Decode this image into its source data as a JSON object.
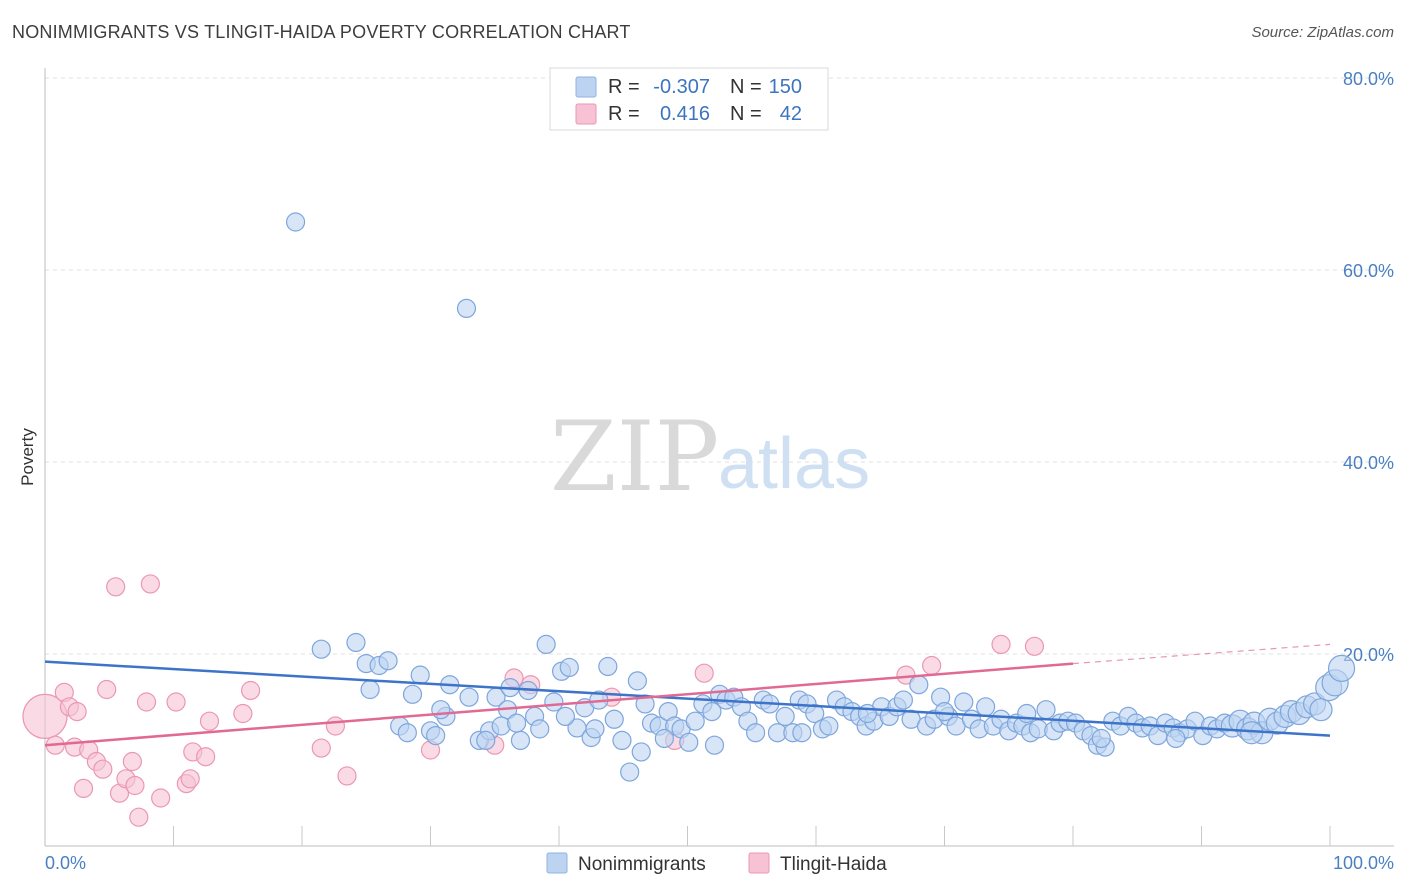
{
  "title": "NONIMMIGRANTS VS TLINGIT-HAIDA POVERTY CORRELATION CHART",
  "source": "Source: ZipAtlas.com",
  "watermark": {
    "zip": "ZIP",
    "atlas": "atlas"
  },
  "colors": {
    "blue": "#3d74c9",
    "blue_fill": "#bcd4f2",
    "pink": "#e06a93",
    "pink_fill": "#f7c3d4"
  },
  "chart_data": {
    "type": "scatter",
    "title": "NONIMMIGRANTS VS TLINGIT-HAIDA POVERTY CORRELATION CHART",
    "xlabel": "",
    "ylabel": "Poverty",
    "xlim": [
      0,
      100
    ],
    "ylim": [
      0,
      80
    ],
    "x_tick_labels": [
      "0.0%",
      "100.0%"
    ],
    "y_ticks": [
      20,
      40,
      60,
      80
    ],
    "y_tick_labels": [
      "20.0%",
      "40.0%",
      "60.0%",
      "80.0%"
    ],
    "legend_stats": [
      {
        "r_label": "R =",
        "r_value": "-0.307",
        "n_label": "N =",
        "n_value": "150"
      },
      {
        "r_label": "R =",
        "r_value": "0.416",
        "n_label": "N =",
        "n_value": "42"
      }
    ],
    "series": [
      {
        "name": "Nonimmigrants",
        "trend": {
          "x": [
            0,
            100
          ],
          "y": [
            19.2,
            11.5
          ]
        },
        "points": [
          [
            19.5,
            65
          ],
          [
            32.8,
            56
          ],
          [
            21.5,
            20.5
          ],
          [
            24.2,
            21.2
          ],
          [
            25.0,
            19.0
          ],
          [
            26.0,
            18.8
          ],
          [
            26.7,
            19.3
          ],
          [
            25.3,
            16.3
          ],
          [
            27.6,
            12.5
          ],
          [
            28.6,
            15.8
          ],
          [
            29.2,
            17.8
          ],
          [
            30.0,
            12.0
          ],
          [
            30.4,
            11.5
          ],
          [
            31.2,
            13.5
          ],
          [
            31.5,
            16.8
          ],
          [
            33.0,
            15.5
          ],
          [
            33.8,
            11.0
          ],
          [
            34.6,
            12.0
          ],
          [
            35.1,
            15.5
          ],
          [
            36.0,
            14.2
          ],
          [
            35.5,
            12.5
          ],
          [
            36.2,
            16.5
          ],
          [
            37.0,
            11.0
          ],
          [
            37.6,
            16.2
          ],
          [
            38.1,
            13.5
          ],
          [
            38.5,
            12.2
          ],
          [
            39.0,
            21.0
          ],
          [
            39.6,
            15.0
          ],
          [
            40.2,
            18.2
          ],
          [
            40.8,
            18.6
          ],
          [
            41.4,
            12.3
          ],
          [
            42.0,
            14.4
          ],
          [
            42.5,
            11.3
          ],
          [
            43.1,
            15.2
          ],
          [
            43.8,
            18.7
          ],
          [
            44.3,
            13.2
          ],
          [
            44.9,
            11.0
          ],
          [
            45.5,
            7.7
          ],
          [
            46.1,
            17.2
          ],
          [
            46.7,
            14.8
          ],
          [
            47.2,
            12.8
          ],
          [
            47.8,
            12.5
          ],
          [
            48.5,
            14.0
          ],
          [
            49.0,
            12.5
          ],
          [
            49.5,
            12.2
          ],
          [
            50.1,
            10.8
          ],
          [
            50.6,
            13.0
          ],
          [
            51.2,
            14.8
          ],
          [
            51.9,
            14.0
          ],
          [
            52.5,
            15.8
          ],
          [
            53.0,
            15.2
          ],
          [
            53.6,
            15.5
          ],
          [
            54.2,
            14.5
          ],
          [
            54.7,
            13.0
          ],
          [
            55.3,
            11.8
          ],
          [
            55.9,
            15.2
          ],
          [
            56.4,
            14.8
          ],
          [
            57.0,
            11.8
          ],
          [
            57.6,
            13.5
          ],
          [
            58.2,
            11.8
          ],
          [
            58.7,
            15.2
          ],
          [
            59.3,
            14.8
          ],
          [
            59.9,
            13.8
          ],
          [
            60.5,
            12.2
          ],
          [
            61.0,
            12.5
          ],
          [
            61.6,
            15.2
          ],
          [
            62.2,
            14.5
          ],
          [
            62.8,
            14.0
          ],
          [
            63.4,
            13.5
          ],
          [
            63.9,
            12.5
          ],
          [
            64.5,
            13.0
          ],
          [
            65.1,
            14.5
          ],
          [
            65.7,
            13.5
          ],
          [
            66.3,
            14.5
          ],
          [
            66.8,
            15.2
          ],
          [
            67.4,
            13.2
          ],
          [
            68.0,
            16.8
          ],
          [
            68.6,
            12.5
          ],
          [
            69.2,
            13.2
          ],
          [
            69.7,
            15.5
          ],
          [
            70.3,
            13.5
          ],
          [
            70.9,
            12.5
          ],
          [
            71.5,
            15.0
          ],
          [
            72.1,
            13.2
          ],
          [
            72.7,
            12.2
          ],
          [
            73.2,
            14.5
          ],
          [
            73.8,
            12.5
          ],
          [
            74.4,
            13.2
          ],
          [
            75.0,
            12.0
          ],
          [
            75.6,
            12.8
          ],
          [
            76.1,
            12.5
          ],
          [
            76.7,
            11.8
          ],
          [
            77.3,
            12.2
          ],
          [
            77.9,
            14.2
          ],
          [
            78.5,
            12.0
          ],
          [
            79.0,
            12.8
          ],
          [
            79.6,
            13.0
          ],
          [
            80.2,
            12.8
          ],
          [
            80.8,
            12.0
          ],
          [
            81.4,
            11.5
          ],
          [
            81.9,
            10.5
          ],
          [
            82.5,
            10.3
          ],
          [
            83.1,
            13.0
          ],
          [
            83.7,
            12.5
          ],
          [
            84.3,
            13.5
          ],
          [
            84.9,
            12.8
          ],
          [
            85.4,
            12.3
          ],
          [
            86.0,
            12.5
          ],
          [
            86.6,
            11.5
          ],
          [
            87.2,
            12.8
          ],
          [
            87.8,
            12.3
          ],
          [
            88.3,
            11.8
          ],
          [
            88.9,
            12.2
          ],
          [
            89.5,
            13.0
          ],
          [
            90.1,
            11.5
          ],
          [
            90.7,
            12.5
          ],
          [
            91.2,
            12.2
          ],
          [
            91.8,
            12.8
          ],
          [
            92.4,
            12.5
          ],
          [
            93.0,
            13.0
          ],
          [
            93.6,
            12.2
          ],
          [
            94.1,
            12.8
          ],
          [
            94.7,
            11.8
          ],
          [
            95.3,
            13.2
          ],
          [
            95.9,
            12.8
          ],
          [
            96.5,
            13.5
          ],
          [
            97.0,
            14.0
          ],
          [
            97.6,
            13.8
          ],
          [
            98.2,
            14.5
          ],
          [
            98.8,
            14.8
          ],
          [
            99.3,
            14.2
          ],
          [
            99.9,
            16.5
          ],
          [
            100.4,
            17.0
          ],
          [
            100.9,
            18.5
          ],
          [
            28.2,
            11.8
          ],
          [
            34.3,
            11.0
          ],
          [
            40.5,
            13.5
          ],
          [
            46.4,
            9.8
          ],
          [
            52.1,
            10.5
          ],
          [
            58.9,
            11.8
          ],
          [
            64.0,
            13.8
          ],
          [
            70.0,
            14.0
          ],
          [
            76.4,
            13.8
          ],
          [
            82.2,
            11.2
          ],
          [
            88.0,
            11.2
          ],
          [
            93.9,
            11.8
          ],
          [
            30.8,
            14.2
          ],
          [
            36.7,
            12.8
          ],
          [
            42.8,
            12.2
          ],
          [
            48.2,
            11.2
          ]
        ]
      },
      {
        "name": "Tlingit-Haida",
        "trend": {
          "x": [
            0,
            80
          ],
          "y": [
            10.5,
            19.0
          ]
        },
        "trend_extension": {
          "x": [
            80,
            100
          ],
          "y": [
            19.0,
            21.0
          ]
        },
        "points": [
          [
            0.0,
            13.5
          ],
          [
            0.8,
            10.5
          ],
          [
            1.5,
            16.0
          ],
          [
            1.9,
            14.5
          ],
          [
            2.5,
            14.0
          ],
          [
            2.3,
            10.3
          ],
          [
            3.0,
            6.0
          ],
          [
            3.4,
            10.0
          ],
          [
            4.0,
            8.8
          ],
          [
            4.5,
            8.0
          ],
          [
            4.8,
            16.3
          ],
          [
            5.5,
            27.0
          ],
          [
            5.8,
            5.5
          ],
          [
            6.3,
            7.0
          ],
          [
            6.8,
            8.8
          ],
          [
            7.0,
            6.3
          ],
          [
            7.3,
            3.0
          ],
          [
            7.9,
            15.0
          ],
          [
            8.2,
            27.3
          ],
          [
            9.0,
            5.0
          ],
          [
            10.2,
            15.0
          ],
          [
            11.0,
            6.5
          ],
          [
            11.3,
            7.0
          ],
          [
            11.5,
            9.8
          ],
          [
            12.5,
            9.3
          ],
          [
            12.8,
            13.0
          ],
          [
            15.4,
            13.8
          ],
          [
            16.0,
            16.2
          ],
          [
            21.5,
            10.2
          ],
          [
            22.6,
            12.5
          ],
          [
            23.5,
            7.3
          ],
          [
            30.0,
            10.0
          ],
          [
            35.0,
            10.5
          ],
          [
            36.5,
            17.5
          ],
          [
            37.8,
            16.8
          ],
          [
            44.1,
            15.5
          ],
          [
            49.0,
            11.0
          ],
          [
            51.3,
            18.0
          ],
          [
            67.0,
            17.8
          ],
          [
            69.0,
            18.8
          ],
          [
            74.4,
            21.0
          ],
          [
            77.0,
            20.8
          ]
        ]
      }
    ]
  }
}
